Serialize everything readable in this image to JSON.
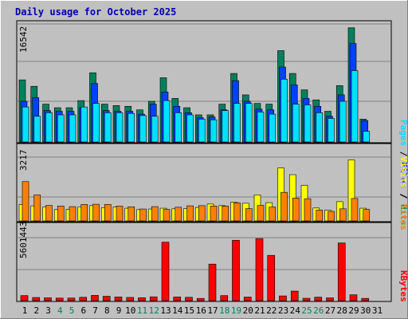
{
  "title": "Daily usage for October 2025",
  "colors": {
    "hits": "#00805c",
    "files": "#0040ff",
    "pages": "#00e0ff",
    "visits": "#ffff00",
    "sites": "#ff8000",
    "kbytes": "#ff0000",
    "day_weekday": "#000000",
    "day_weekend": "#00805c"
  },
  "day_labels": [
    "1",
    "2",
    "3",
    "4",
    "5",
    "6",
    "7",
    "8",
    "9",
    "10",
    "11",
    "12",
    "13",
    "14",
    "15",
    "16",
    "17",
    "18",
    "19",
    "20",
    "21",
    "22",
    "23",
    "24",
    "25",
    "26",
    "27",
    "28",
    "29",
    "30",
    "31"
  ],
  "weekend_days": [
    4,
    5,
    11,
    12,
    18,
    19,
    25,
    26
  ],
  "chart_data": [
    {
      "type": "bar",
      "name": "hits-files-pages",
      "y_max_label": "16542",
      "ylim": [
        0,
        16542
      ],
      "legend": [
        "Pages",
        "Files",
        "Hits"
      ],
      "categories": [
        "1",
        "2",
        "3",
        "4",
        "5",
        "6",
        "7",
        "8",
        "9",
        "10",
        "11",
        "12",
        "13",
        "14",
        "15",
        "16",
        "17",
        "18",
        "19",
        "20",
        "21",
        "22",
        "23",
        "24",
        "25",
        "26",
        "27",
        "28",
        "29",
        "30",
        "31"
      ],
      "series": [
        {
          "name": "Hits",
          "values": [
            8700,
            7800,
            5300,
            4800,
            4800,
            5800,
            9700,
            5300,
            5100,
            5000,
            4500,
            5700,
            9000,
            6100,
            4800,
            3800,
            3800,
            5300,
            9600,
            6600,
            5400,
            5300,
            12800,
            9600,
            7300,
            5900,
            4300,
            7900,
            16000,
            3200,
            0
          ]
        },
        {
          "name": "Files",
          "values": [
            5700,
            6200,
            4400,
            4300,
            4300,
            4800,
            8200,
            4400,
            4300,
            4300,
            3900,
            5300,
            7000,
            5000,
            4100,
            3400,
            3500,
            4500,
            8600,
            5700,
            4600,
            4500,
            10500,
            8000,
            6100,
            5000,
            3600,
            6600,
            13800,
            3000,
            0
          ]
        },
        {
          "name": "Pages",
          "values": [
            4900,
            3600,
            4100,
            3800,
            3800,
            4900,
            5400,
            4100,
            4100,
            4000,
            3700,
            3600,
            5800,
            4100,
            3800,
            3200,
            3100,
            4400,
            5400,
            5400,
            4200,
            3900,
            8800,
            5300,
            5200,
            4100,
            3300,
            5700,
            10000,
            1500,
            0
          ]
        }
      ]
    },
    {
      "type": "bar",
      "name": "visits-sites",
      "y_max_label": "3217",
      "ylim": [
        0,
        3217
      ],
      "legend": [
        "Sites",
        "Visits"
      ],
      "categories": [
        "1",
        "2",
        "3",
        "4",
        "5",
        "6",
        "7",
        "8",
        "9",
        "10",
        "11",
        "12",
        "13",
        "14",
        "15",
        "16",
        "17",
        "18",
        "19",
        "20",
        "21",
        "22",
        "23",
        "24",
        "25",
        "26",
        "27",
        "28",
        "29",
        "30",
        "31"
      ],
      "series": [
        {
          "name": "Visits",
          "values": [
            830,
            760,
            700,
            570,
            580,
            710,
            770,
            670,
            700,
            640,
            570,
            600,
            640,
            610,
            620,
            680,
            850,
            770,
            950,
            890,
            1310,
            920,
            2670,
            2330,
            1800,
            650,
            540,
            970,
            3080,
            640,
            0
          ]
        },
        {
          "name": "Sites",
          "values": [
            1980,
            1310,
            780,
            750,
            720,
            830,
            840,
            830,
            750,
            710,
            600,
            720,
            580,
            690,
            760,
            770,
            750,
            750,
            910,
            620,
            780,
            700,
            1440,
            1150,
            1120,
            550,
            480,
            610,
            1130,
            580,
            0
          ]
        }
      ]
    },
    {
      "type": "bar",
      "name": "kbytes",
      "y_max_label": "5601443",
      "ylim": [
        0,
        5601443
      ],
      "legend": [
        "KBytes"
      ],
      "categories": [
        "1",
        "2",
        "3",
        "4",
        "5",
        "6",
        "7",
        "8",
        "9",
        "10",
        "11",
        "12",
        "13",
        "14",
        "15",
        "16",
        "17",
        "18",
        "19",
        "20",
        "21",
        "22",
        "23",
        "24",
        "25",
        "26",
        "27",
        "28",
        "29",
        "30",
        "31"
      ],
      "series": [
        {
          "name": "KBytes",
          "values": [
            450000,
            280000,
            250000,
            230000,
            230000,
            300000,
            470000,
            390000,
            330000,
            290000,
            260000,
            340000,
            5200000,
            330000,
            300000,
            200000,
            3250000,
            450000,
            5370000,
            320000,
            5520000,
            4030000,
            420000,
            850000,
            210000,
            310000,
            250000,
            5130000,
            520000,
            200000,
            0
          ]
        }
      ]
    }
  ]
}
